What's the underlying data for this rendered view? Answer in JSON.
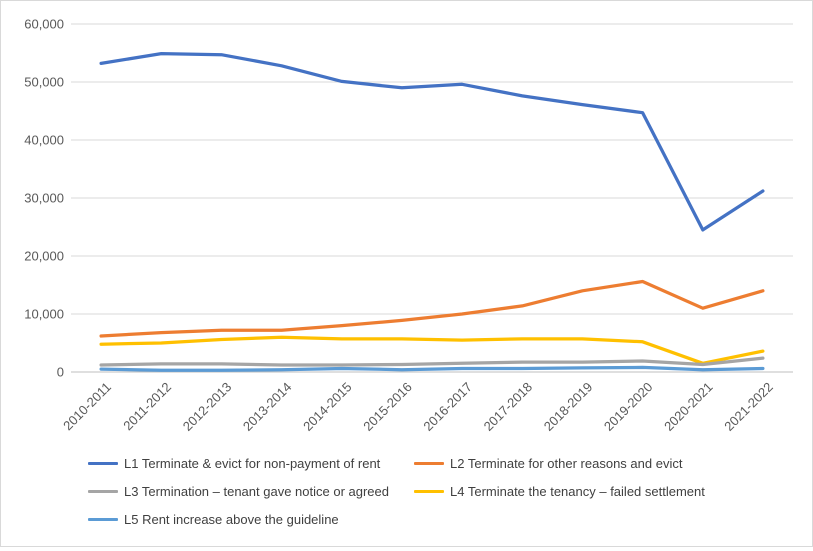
{
  "chart_data": {
    "type": "line",
    "title": "",
    "xlabel": "",
    "ylabel": "",
    "ylim": [
      0,
      60000
    ],
    "yticks": [
      0,
      10000,
      20000,
      30000,
      40000,
      50000,
      60000
    ],
    "ytick_labels": [
      "0",
      "10,000",
      "20,000",
      "30,000",
      "40,000",
      "50,000",
      "60,000"
    ],
    "grid": "horizontal",
    "legend_position": "bottom",
    "categories": [
      "2010-2011",
      "2011-2012",
      "2012-2013",
      "2013-2014",
      "2014-2015",
      "2015-2016",
      "2016-2017",
      "2017-2018",
      "2018-2019",
      "2019-2020",
      "2020-2021",
      "2021-2022"
    ],
    "series": [
      {
        "name": "L1 Terminate & evict for non-payment of rent",
        "color": "#4472c4",
        "values": [
          53200,
          54900,
          54700,
          52800,
          50100,
          49000,
          49600,
          47600,
          46100,
          44700,
          24500,
          31200
        ]
      },
      {
        "name": "L2 Terminate for other reasons and evict",
        "color": "#ed7d31",
        "values": [
          6200,
          6800,
          7200,
          7200,
          8000,
          8900,
          10000,
          11400,
          14000,
          15600,
          11000,
          14000
        ]
      },
      {
        "name": "L3 Termination – tenant gave notice or agreed",
        "color": "#a5a5a5",
        "values": [
          1200,
          1400,
          1400,
          1200,
          1200,
          1300,
          1500,
          1700,
          1700,
          1900,
          1300,
          2400
        ]
      },
      {
        "name": "L4 Terminate the tenancy – failed settlement",
        "color": "#ffc000",
        "values": [
          4800,
          5000,
          5600,
          6000,
          5700,
          5700,
          5500,
          5700,
          5700,
          5200,
          1500,
          3600
        ]
      },
      {
        "name": "L5 Rent increase above the guideline",
        "color": "#5b9bd5",
        "values": [
          500,
          300,
          300,
          400,
          600,
          400,
          600,
          600,
          700,
          800,
          400,
          600
        ]
      }
    ]
  }
}
